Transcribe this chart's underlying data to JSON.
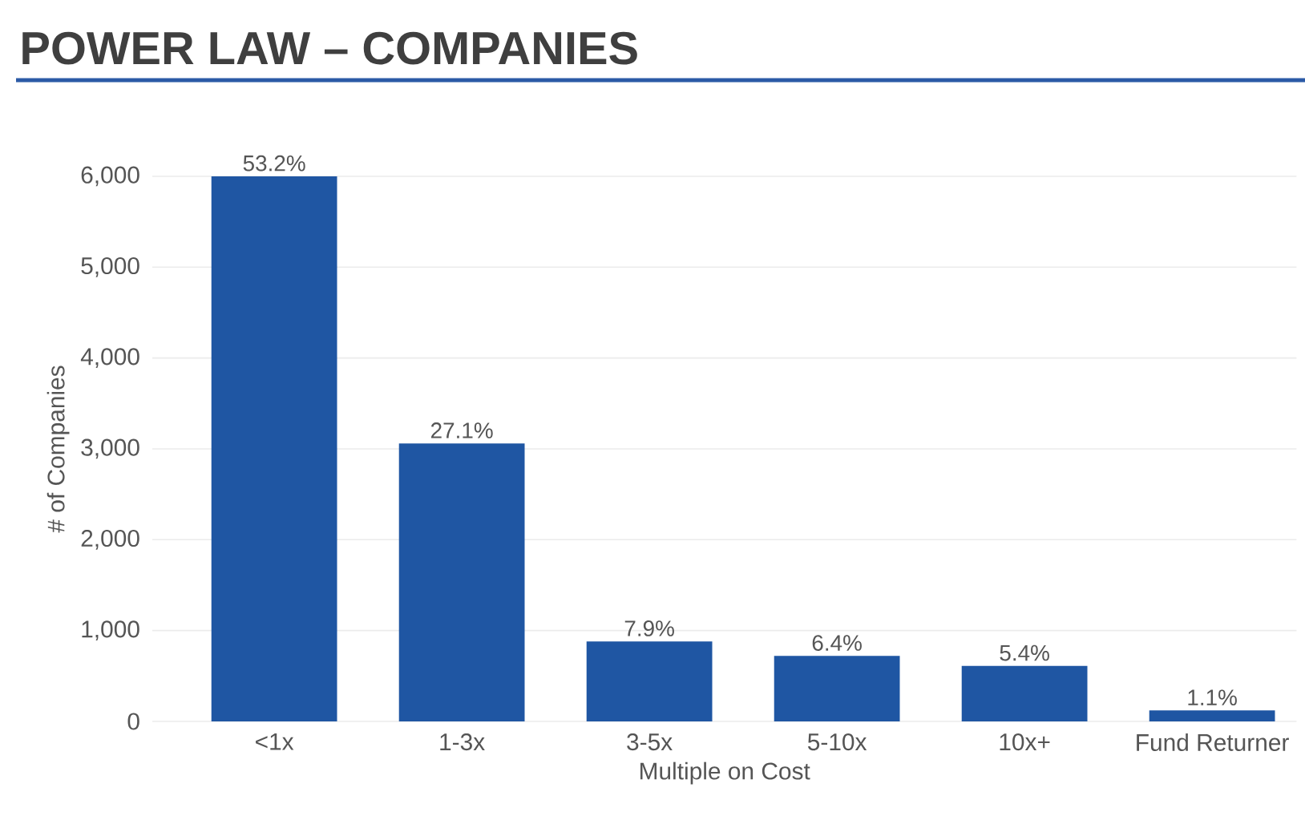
{
  "chart_data": {
    "type": "bar",
    "title": "POWER LAW – COMPANIES",
    "categories": [
      "<1x",
      "1-3x",
      "3-5x",
      "5-10x",
      "10x+",
      "Fund Returner"
    ],
    "values": [
      6000,
      3060,
      880,
      720,
      610,
      120
    ],
    "annotations": [
      {
        "text": "53.2%",
        "x": "<1x",
        "y": 6000
      },
      {
        "text": "27.1%",
        "x": "1-3x",
        "y": 3060
      },
      {
        "text": "7.9%",
        "x": "3-5x",
        "y": 880
      },
      {
        "text": "6.4%",
        "x": "5-10x",
        "y": 720
      },
      {
        "text": "5.4%",
        "x": "10x+",
        "y": 610
      },
      {
        "text": "1.1%",
        "x": "Fund Returner",
        "y": 120
      }
    ],
    "color": "#1f56a3",
    "xlabel": "Multiple on Cost",
    "ylabel": "# of Companies",
    "ylim": [
      0,
      6000
    ],
    "yticks": [
      0,
      {
        "value": 1000,
        "label": "1,000"
      },
      {
        "value": 2000,
        "label": "2,000"
      },
      {
        "value": 3000,
        "label": "3,000"
      },
      {
        "value": 4000,
        "label": "4,000"
      },
      {
        "value": 5000,
        "label": "5,000"
      },
      {
        "value": 6000,
        "label": "6,000"
      }
    ],
    "grid": "y"
  }
}
